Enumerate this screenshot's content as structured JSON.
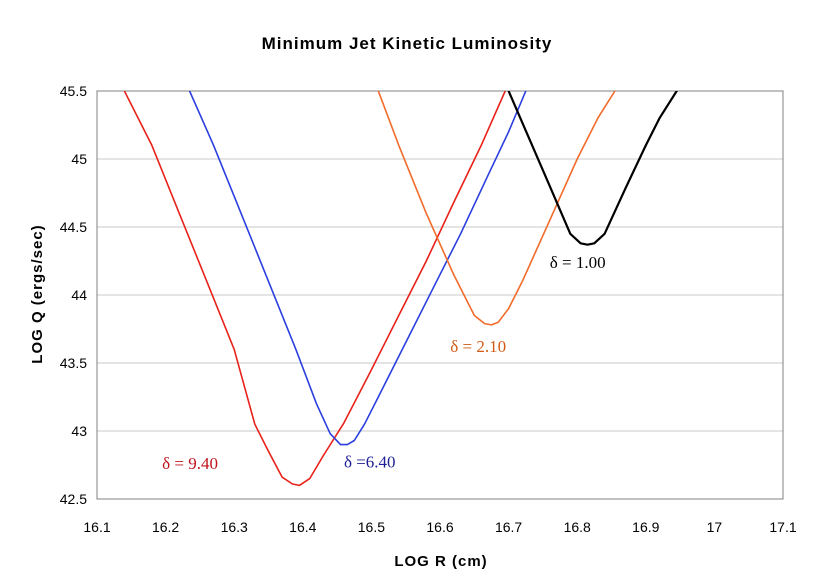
{
  "chart_data": {
    "type": "line",
    "title": "Minimum Jet Kinetic Luminosity",
    "xlabel": "LOG R (cm)",
    "ylabel": "LOG Q (ergs/sec)",
    "xlim": [
      16.1,
      17.1
    ],
    "ylim": [
      42.5,
      45.5
    ],
    "x_ticks": [
      "16.1",
      "16.2",
      "16.3",
      "16.4",
      "16.5",
      "16.6",
      "16.7",
      "16.8",
      "16.9",
      "17",
      "17.1"
    ],
    "y_ticks": [
      "42.5",
      "43",
      "43.5",
      "44",
      "44.5",
      "45",
      "45.5"
    ],
    "grid": true,
    "series": [
      {
        "name": "delta = 9.40",
        "label": "δ = 9.40",
        "color": "#e8221a",
        "label_color": "#c0141e",
        "x": [
          16.14,
          16.18,
          16.22,
          16.26,
          16.3,
          16.33,
          16.35,
          16.37,
          16.385,
          16.395,
          16.41,
          16.43,
          16.46,
          16.5,
          16.54,
          16.58,
          16.62,
          16.66,
          16.695
        ],
        "y": [
          45.5,
          45.1,
          44.6,
          44.1,
          43.6,
          43.05,
          42.85,
          42.66,
          42.61,
          42.6,
          42.65,
          42.82,
          43.06,
          43.45,
          43.85,
          44.25,
          44.68,
          45.1,
          45.5
        ]
      },
      {
        "name": "delta = 6.40",
        "label": "δ =6.40",
        "color": "#2b3fe0",
        "label_color": "#202096",
        "x": [
          16.235,
          16.27,
          16.31,
          16.35,
          16.39,
          16.42,
          16.44,
          16.455,
          16.465,
          16.475,
          16.49,
          16.51,
          16.55,
          16.59,
          16.63,
          16.67,
          16.7,
          16.725
        ],
        "y": [
          45.5,
          45.1,
          44.6,
          44.1,
          43.6,
          43.2,
          42.98,
          42.9,
          42.9,
          42.93,
          43.05,
          43.25,
          43.65,
          44.05,
          44.45,
          44.88,
          45.2,
          45.5
        ]
      },
      {
        "name": "delta = 2.10",
        "label": "δ = 2.10",
        "color": "#f26b2a",
        "label_color": "#d25a12",
        "x": [
          16.51,
          16.54,
          16.58,
          16.62,
          16.65,
          16.665,
          16.675,
          16.685,
          16.7,
          16.72,
          16.76,
          16.8,
          16.83,
          16.855
        ],
        "y": [
          45.5,
          45.1,
          44.6,
          44.15,
          43.85,
          43.79,
          43.78,
          43.8,
          43.9,
          44.1,
          44.55,
          45.0,
          45.3,
          45.5
        ]
      },
      {
        "name": "delta = 1.00",
        "label": "δ = 1.00",
        "color": "#000000",
        "label_color": "#000000",
        "x": [
          16.7,
          16.73,
          16.76,
          16.79,
          16.805,
          16.815,
          16.825,
          16.84,
          16.87,
          16.9,
          16.92,
          16.945
        ],
        "y": [
          45.5,
          45.15,
          44.8,
          44.45,
          44.38,
          44.37,
          44.38,
          44.45,
          44.78,
          45.1,
          45.3,
          45.5
        ]
      }
    ]
  }
}
